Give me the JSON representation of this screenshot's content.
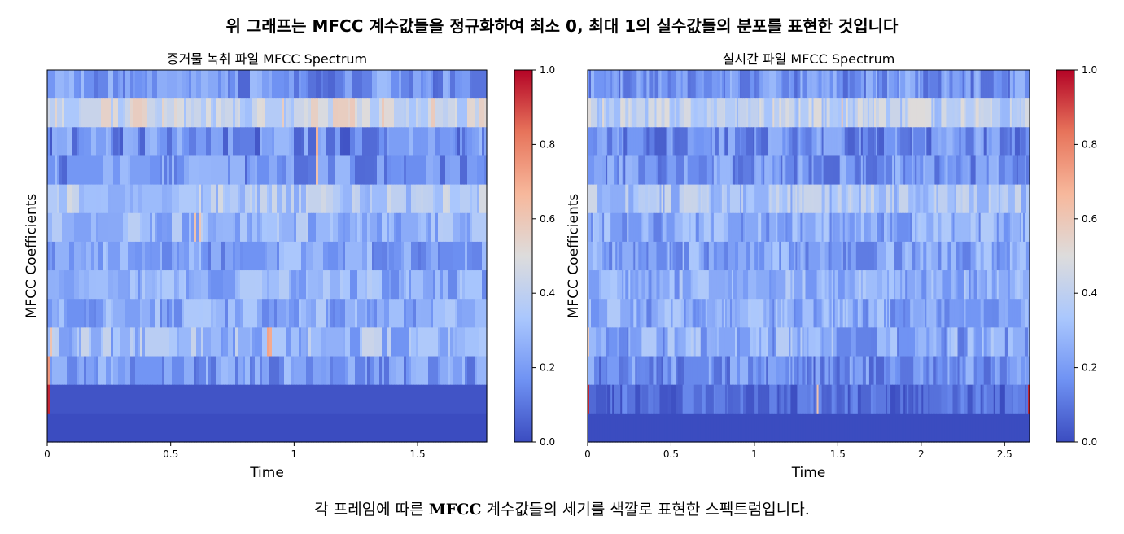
{
  "figure": {
    "suptitle": "위 그래프는 MFCC 계수값들을 정규화하여 최소 0, 최대 1의 실수값들의 분포를 표현한 것입니다",
    "caption_pre": "각 프레임에 따른 ",
    "caption_bold": "MFCC",
    "caption_post": " 계수값들의 세기를 색깔로 표현한 스펙트럼입니다."
  },
  "colormap": {
    "name": "coolwarm",
    "stops": [
      "#3b4cc0",
      "#6f92f3",
      "#aac7fd",
      "#dddcdc",
      "#f7b89c",
      "#e7745b",
      "#b40426"
    ]
  },
  "chart_data": [
    {
      "type": "heatmap",
      "title": "증거물 녹취 파일 MFCC Spectrum",
      "xlabel": "Time",
      "ylabel": "MFCC Coefficients",
      "xlim": [
        0,
        1.78
      ],
      "xticks": [
        "0",
        "0.5",
        "1",
        "1.5"
      ],
      "xtick_values": [
        0,
        0.5,
        1,
        1.5
      ],
      "n_coefficients": 13,
      "n_frames": 180,
      "row_means": [
        0.18,
        0.45,
        0.16,
        0.18,
        0.36,
        0.28,
        0.22,
        0.26,
        0.24,
        0.3,
        0.2,
        0.02,
        0.0
      ],
      "row_spread": [
        0.12,
        0.14,
        0.14,
        0.12,
        0.12,
        0.12,
        0.12,
        0.12,
        0.12,
        0.14,
        0.12,
        0.0,
        0.0
      ],
      "highlights": [
        {
          "row": 11,
          "frame": 0,
          "value": 0.95
        },
        {
          "row": 10,
          "frame": 0,
          "value": 0.75
        },
        {
          "row": 9,
          "frame": 1,
          "value": 0.62
        },
        {
          "row": 2,
          "frame": 110,
          "value": 0.68
        },
        {
          "row": 3,
          "frame": 110,
          "value": 0.62
        },
        {
          "row": 5,
          "frame": 60,
          "value": 0.62
        },
        {
          "row": 5,
          "frame": 62,
          "value": 0.6
        },
        {
          "row": 9,
          "frame": 90,
          "value": 0.72
        },
        {
          "row": 9,
          "frame": 91,
          "value": 0.7
        }
      ],
      "colorbar": {
        "range": [
          0,
          1
        ],
        "ticks": [
          "0.0",
          "0.2",
          "0.4",
          "0.6",
          "0.8",
          "1.0"
        ],
        "tick_values": [
          0,
          0.2,
          0.4,
          0.6,
          0.8,
          1.0
        ]
      }
    },
    {
      "type": "heatmap",
      "title": "실시간 파일 MFCC Spectrum",
      "xlabel": "Time",
      "ylabel": "MFCC Coefficients",
      "xlim": [
        0,
        2.65
      ],
      "xticks": [
        "0",
        "0.5",
        "1",
        "1.5",
        "2",
        "2.5"
      ],
      "xtick_values": [
        0,
        0.5,
        1,
        1.5,
        2,
        2.5
      ],
      "n_coefficients": 13,
      "n_frames": 270,
      "row_means": [
        0.18,
        0.4,
        0.16,
        0.18,
        0.34,
        0.24,
        0.22,
        0.26,
        0.24,
        0.24,
        0.16,
        0.08,
        0.0
      ],
      "row_spread": [
        0.12,
        0.12,
        0.12,
        0.12,
        0.12,
        0.12,
        0.12,
        0.12,
        0.12,
        0.14,
        0.12,
        0.08,
        0.0
      ],
      "highlights": [
        {
          "row": 11,
          "frame": 0,
          "value": 0.95
        },
        {
          "row": 11,
          "frame": 269,
          "value": 0.95
        },
        {
          "row": 11,
          "frame": 140,
          "value": 0.62
        },
        {
          "row": 9,
          "frame": 0,
          "value": 0.6
        },
        {
          "row": 1,
          "frame": 155,
          "value": 0.6
        }
      ],
      "colorbar": {
        "range": [
          0,
          1
        ],
        "ticks": [
          "0.0",
          "0.2",
          "0.4",
          "0.6",
          "0.8",
          "1.0"
        ],
        "tick_values": [
          0,
          0.2,
          0.4,
          0.6,
          0.8,
          1.0
        ]
      }
    }
  ]
}
